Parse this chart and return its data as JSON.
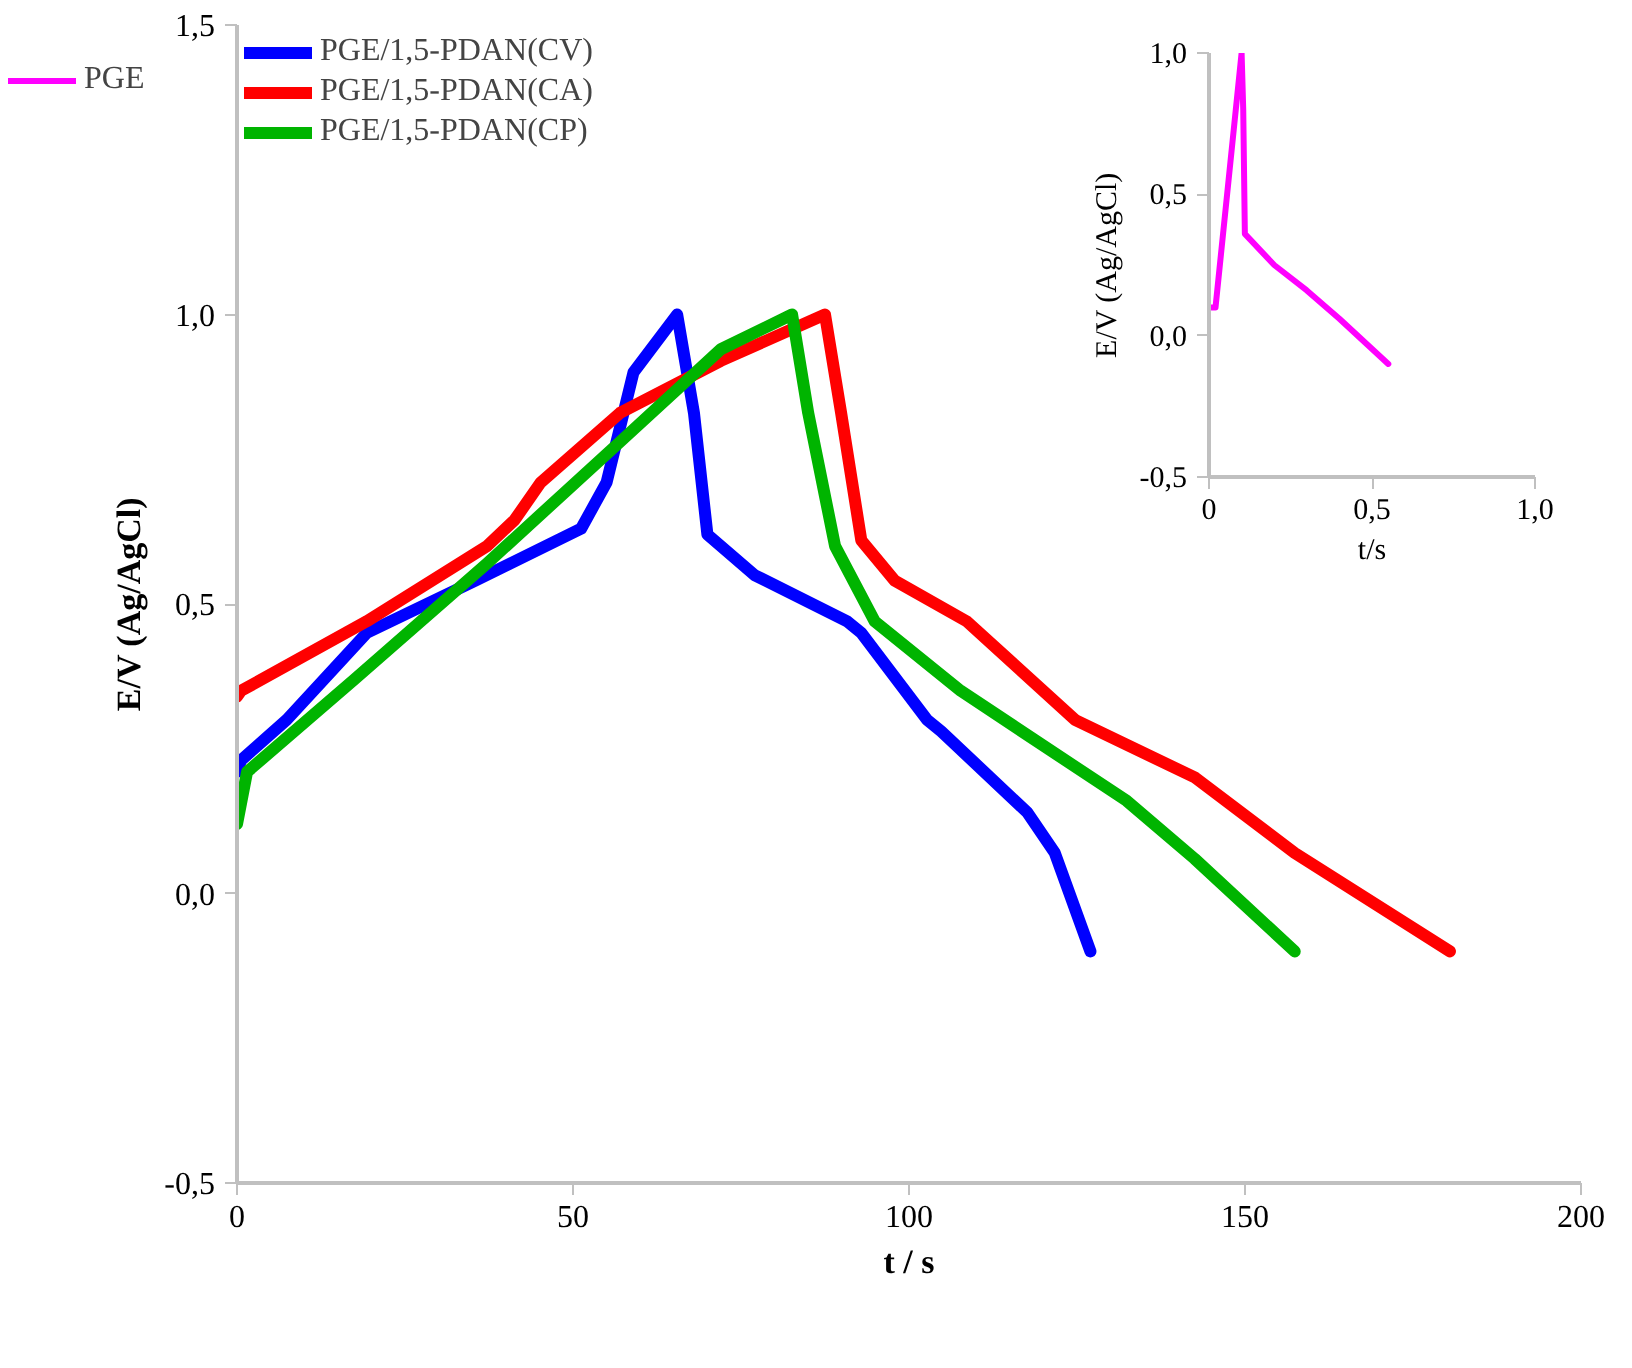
{
  "chart_data": [
    {
      "type": "line",
      "xlabel": "t / s",
      "ylabel": "E/V (Ag/AgCl)",
      "xlim": [
        0,
        200
      ],
      "xticks": [
        0,
        50,
        100,
        150,
        200
      ],
      "ylim": [
        -0.5,
        1.5
      ],
      "yticks": [
        {
          "value": -0.5,
          "label": "-0,5"
        },
        {
          "value": 0,
          "label": "0,0"
        },
        {
          "value": 0.5,
          "label": "0,5"
        },
        {
          "value": 1.0,
          "label": "1,0"
        },
        {
          "value": 1.5,
          "label": "1,5"
        }
      ],
      "grid": false,
      "legend": "top left",
      "marker": "none",
      "line_style": "solid",
      "series": [
        {
          "name": "PGE/1,5-PDAN(CV)",
          "color": "#0000ff",
          "x": [
            0,
            0.6,
            7.4,
            19.3,
            35.4,
            51.2,
            55,
            59,
            65.5,
            68,
            70,
            77,
            90.8,
            92.9,
            102.7,
            104.8,
            117.6,
            121.7,
            127
          ],
          "values": [
            0.21,
            0.23,
            0.3,
            0.45,
            0.54,
            0.63,
            0.71,
            0.9,
            1.0,
            0.83,
            0.62,
            0.55,
            0.47,
            0.45,
            0.3,
            0.28,
            0.14,
            0.07,
            -0.1
          ]
        },
        {
          "name": "PGE/1,5-PDAN(CA)",
          "color": "#ff0000",
          "x": [
            0,
            0.6,
            19.3,
            37.2,
            41.3,
            45.2,
            57,
            72,
            87.5,
            89.9,
            92.9,
            97.9,
            108.6,
            124.7,
            142.6,
            157.4,
            180.5
          ],
          "values": [
            0.34,
            0.35,
            0.47,
            0.6,
            0.645,
            0.71,
            0.83,
            0.92,
            1.0,
            0.83,
            0.61,
            0.54,
            0.47,
            0.3,
            0.2,
            0.07,
            -0.1
          ]
        },
        {
          "name": "PGE/1,5-PDAN(CP)",
          "color": "#00b400",
          "x": [
            0,
            1.5,
            17.5,
            37.2,
            57,
            72,
            82.6,
            85,
            89,
            94.9,
            107.7,
            132.4,
            142.5,
            157.4
          ],
          "values": [
            0.12,
            0.21,
            0.37,
            0.57,
            0.78,
            0.94,
            1.0,
            0.83,
            0.6,
            0.47,
            0.35,
            0.16,
            0.06,
            -0.1
          ]
        }
      ]
    },
    {
      "type": "line",
      "xlabel": "t/s",
      "ylabel": "E/V (Ag/AgCl)",
      "xlim": [
        0,
        1.0
      ],
      "xticks": [
        0,
        {
          "value": 0.5,
          "label": "0,5"
        },
        {
          "value": 1.0,
          "label": "1,0"
        }
      ],
      "ylim": [
        -0.5,
        1.0
      ],
      "yticks": [
        {
          "value": -0.5,
          "label": "-0,5"
        },
        {
          "value": 0,
          "label": "0,0"
        },
        {
          "value": 0.5,
          "label": "0,5"
        },
        {
          "value": 1.0,
          "label": "1,0"
        }
      ],
      "grid": false,
      "legend": "top left",
      "marker": "none",
      "line_style": "solid",
      "series": [
        {
          "name": "PGE",
          "color": "#ff00ff",
          "x": [
            0,
            0.02,
            0.06,
            0.1,
            0.105,
            0.11,
            0.2,
            0.3,
            0.4,
            0.55
          ],
          "values": [
            0.1,
            0.1,
            0.55,
            1.0,
            0.8,
            0.36,
            0.25,
            0.16,
            0.06,
            -0.1
          ]
        }
      ]
    }
  ]
}
